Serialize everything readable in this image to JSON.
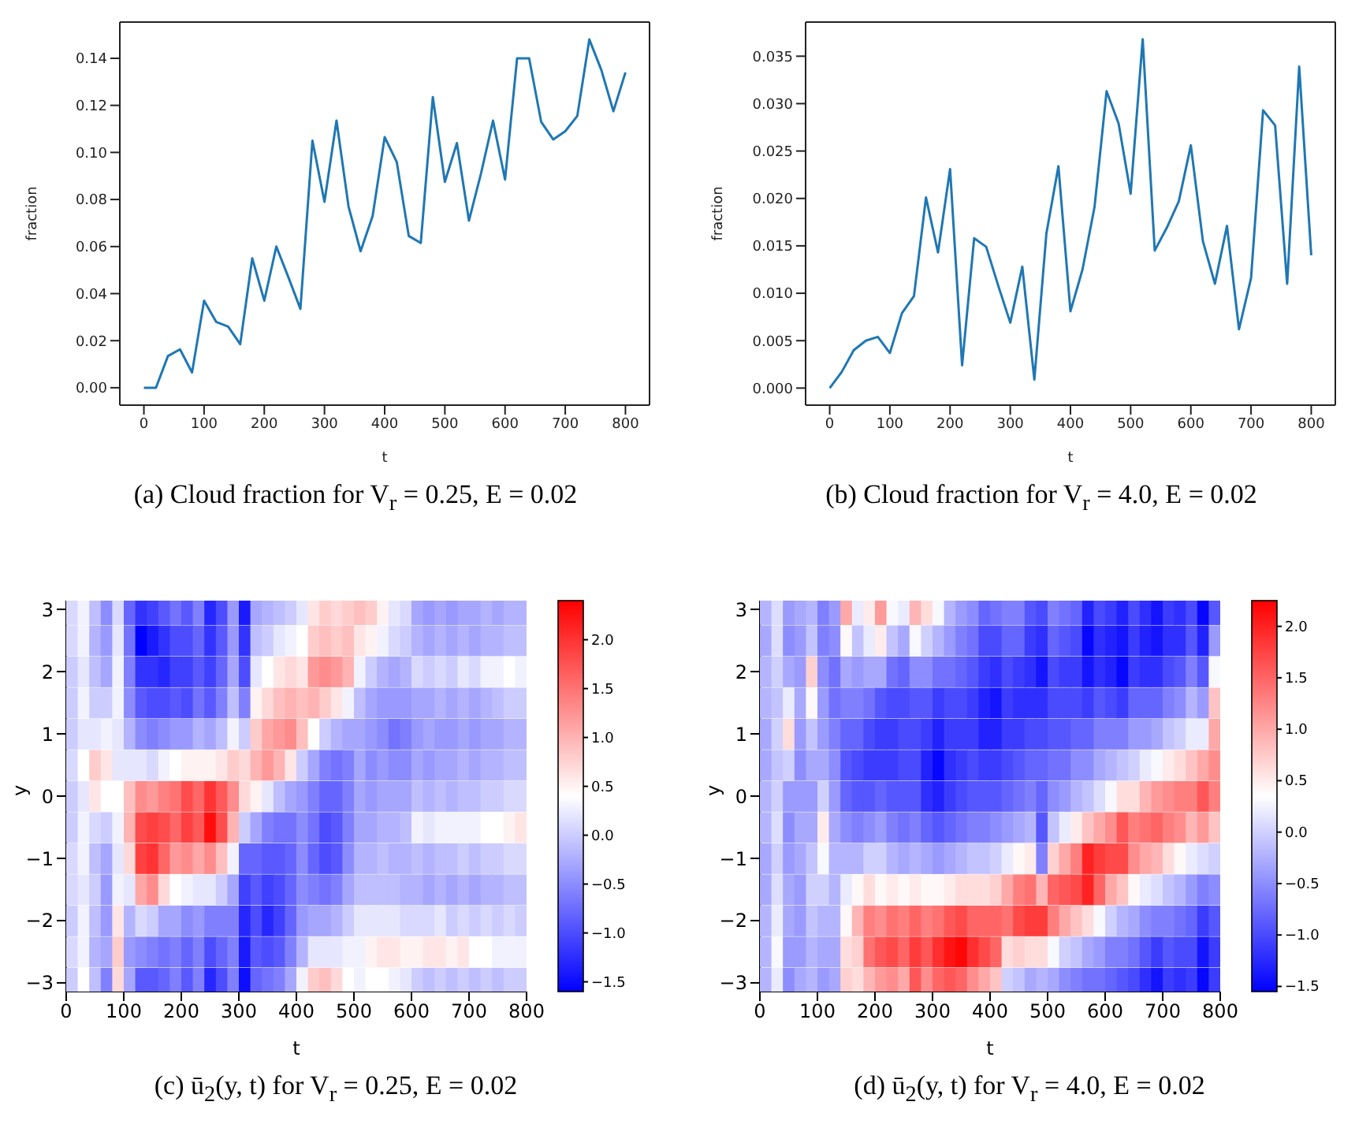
{
  "chart_data": [
    {
      "type": "line",
      "xlabel": "t",
      "ylabel": "fraction",
      "annotations": [
        "(a) Cloud fraction for V$_{r}$ = 0.25, E = 0.02"
      ],
      "x": [
        0,
        20,
        40,
        60,
        80,
        100,
        120,
        140,
        160,
        180,
        200,
        220,
        240,
        260,
        280,
        300,
        320,
        340,
        360,
        380,
        400,
        420,
        440,
        460,
        480,
        500,
        520,
        540,
        560,
        580,
        600,
        620,
        640,
        660,
        680,
        700,
        720,
        740,
        760,
        780,
        800
      ],
      "series": [
        {
          "color": "#1f77b4",
          "values": [
            0,
            0,
            0.0135,
            0.0163,
            0.0065,
            0.037,
            0.028,
            0.026,
            0.0185,
            0.055,
            0.037,
            0.06,
            0.047,
            0.0335,
            0.105,
            0.079,
            0.1135,
            0.077,
            0.058,
            0.073,
            0.1065,
            0.096,
            0.0645,
            0.0615,
            0.1235,
            0.0875,
            0.104,
            0.071,
            0.091,
            0.1135,
            0.0885,
            0.14,
            0.14,
            0.113,
            0.1055,
            0.109,
            0.1155,
            0.148,
            0.135,
            0.1175,
            0.134
          ]
        }
      ],
      "xlim": [
        -40,
        840
      ],
      "xticks": [
        0,
        100,
        200,
        300,
        400,
        500,
        600,
        700,
        800
      ],
      "ylim": [
        -0.0074,
        0.1554
      ],
      "yticks": [
        {
          "value": 0,
          "label": "0.00"
        },
        0.02,
        0.04,
        0.06,
        0.08,
        {
          "value": 0.1,
          "label": "0.10"
        },
        0.12,
        0.14
      ]
    },
    {
      "type": "line",
      "xlabel": "t",
      "ylabel": "fraction",
      "annotations": [
        "(b) Cloud fraction for V$_{r}$ = 4.0, E = 0.02"
      ],
      "x": [
        0,
        20,
        40,
        60,
        80,
        100,
        120,
        140,
        160,
        180,
        200,
        220,
        240,
        260,
        280,
        300,
        320,
        340,
        360,
        380,
        400,
        420,
        440,
        460,
        480,
        500,
        520,
        540,
        560,
        580,
        600,
        620,
        640,
        660,
        680,
        700,
        720,
        740,
        760,
        780,
        800
      ],
      "series": [
        {
          "color": "#1f77b4",
          "values": [
            0,
            0.0017,
            0.004,
            0.005,
            0.0054,
            0.0037,
            0.0079,
            0.0097,
            0.0201,
            0.0143,
            0.0231,
            0.0024,
            0.0158,
            0.0149,
            0.0108,
            0.0069,
            0.0128,
            0.0009,
            0.0163,
            0.0234,
            0.0081,
            0.0125,
            0.0191,
            0.0313,
            0.0279,
            0.0205,
            0.0368,
            0.0145,
            0.0169,
            0.0197,
            0.0256,
            0.0155,
            0.011,
            0.0171,
            0.0062,
            0.0116,
            0.0293,
            0.0277,
            0.011,
            0.0339,
            0.014
          ]
        }
      ],
      "xlim": [
        -40,
        840
      ],
      "xticks": [
        0,
        100,
        200,
        300,
        400,
        500,
        600,
        700,
        800
      ],
      "ylim": [
        -0.0018,
        0.0386
      ],
      "yticks": [
        {
          "value": 0,
          "label": "0.000"
        },
        0.005,
        {
          "value": 0.01,
          "label": "0.010"
        },
        0.015,
        {
          "value": 0.02,
          "label": "0.020"
        },
        0.025,
        {
          "value": 0.03,
          "label": "0.030"
        },
        0.035
      ]
    },
    {
      "type": "heatmap",
      "xlabel": "t",
      "ylabel": "y",
      "annotations": [
        "(c) ū$_{2}$(y, t) for V$_{r}$ = 0.25, E = 0.02"
      ],
      "x": [
        10,
        30,
        50,
        70,
        90,
        110,
        130,
        150,
        170,
        190,
        210,
        230,
        250,
        270,
        290,
        310,
        330,
        350,
        370,
        390,
        410,
        430,
        450,
        470,
        490,
        510,
        530,
        550,
        570,
        590,
        610,
        630,
        650,
        670,
        690,
        710,
        730,
        750,
        770,
        790
      ],
      "y": [
        3,
        2.5,
        2,
        1.5,
        1,
        0.5,
        0,
        -0.5,
        -1,
        -1.5,
        -2,
        -2.5,
        -3
      ],
      "xlim": [
        0,
        800
      ],
      "xticks": [
        0,
        100,
        200,
        300,
        400,
        500,
        600,
        700,
        800
      ],
      "ylim": [
        -3.14,
        3.14
      ],
      "yticks": [
        {
          "value": -3,
          "label": "−3"
        },
        {
          "value": -2,
          "label": "−2"
        },
        {
          "value": -1,
          "label": "−1"
        },
        0,
        1,
        2,
        3
      ],
      "colors": [
        "#0000ff",
        "#ffffff",
        "#ff0000"
      ],
      "clim": [
        -1.6,
        2.4
      ],
      "cticks": [
        {
          "value": -1.5,
          "label": "−1.5"
        },
        {
          "value": -1,
          "label": "−1.0"
        },
        {
          "value": -0.5,
          "label": "−0.5"
        },
        {
          "value": 0,
          "label": "0.0"
        },
        {
          "value": 0.5,
          "label": "0.5"
        },
        {
          "value": 1,
          "label": "1.0"
        },
        {
          "value": 1.5,
          "label": "1.5"
        },
        {
          "value": 2,
          "label": "2.0"
        }
      ],
      "cells": [
        [
          0.1,
          0.3,
          -0.1,
          -0.5,
          0.1,
          -0.8,
          -1.2,
          -1.1,
          -0.9,
          -0.7,
          -0.9,
          -0.6,
          -1.3,
          -1.0,
          -0.4,
          -1.4,
          -0.3,
          -0.2,
          -0.1,
          0.0,
          0.2,
          0.6,
          0.8,
          0.7,
          0.8,
          0.9,
          0.8,
          0.5,
          0.2,
          0.1,
          -0.3,
          -0.4,
          -0.3,
          -0.4,
          -0.3,
          -0.3,
          -0.2,
          -0.3,
          -0.2,
          -0.2
        ],
        [
          0.1,
          0.3,
          -0.2,
          -0.4,
          0.2,
          -0.7,
          -1.6,
          -1.4,
          -1.2,
          -1.0,
          -1.0,
          -0.8,
          -1.2,
          -0.9,
          -0.4,
          -1.2,
          -0.1,
          0.0,
          0.2,
          0.3,
          0.4,
          0.8,
          0.9,
          0.8,
          0.9,
          0.6,
          0.5,
          0.3,
          0.1,
          0.0,
          -0.2,
          -0.3,
          -0.2,
          -0.3,
          -0.2,
          -0.3,
          -0.2,
          -0.2,
          -0.1,
          -0.1
        ],
        [
          0.0,
          0.2,
          -0.1,
          -0.3,
          0.3,
          -0.6,
          -1.2,
          -1.2,
          -1.3,
          -1.1,
          -1.1,
          -0.9,
          -1.1,
          -0.8,
          -0.3,
          -1.0,
          0.2,
          0.4,
          0.6,
          0.7,
          0.6,
          1.2,
          1.3,
          1.2,
          1.0,
          0.3,
          0.0,
          -0.2,
          -0.3,
          -0.2,
          0.1,
          0.0,
          0.1,
          0.0,
          0.2,
          0.1,
          0.3,
          0.3,
          0.4,
          0.3
        ],
        [
          0.0,
          0.3,
          0.0,
          0.0,
          0.3,
          -0.5,
          -0.9,
          -1.0,
          -1.0,
          -0.9,
          -1.0,
          -0.7,
          -0.9,
          -0.6,
          -0.1,
          -0.6,
          0.5,
          0.7,
          0.9,
          1.0,
          0.9,
          1.0,
          0.8,
          0.6,
          0.3,
          -0.1,
          -0.3,
          -0.4,
          -0.4,
          -0.4,
          -0.3,
          -0.3,
          -0.2,
          -0.3,
          -0.2,
          -0.3,
          -0.2,
          -0.1,
          0.0,
          0.0
        ],
        [
          0.0,
          0.2,
          0.2,
          0.3,
          0.2,
          -0.2,
          -0.5,
          -0.6,
          -0.5,
          -0.4,
          -0.4,
          -0.2,
          -0.3,
          -0.1,
          0.3,
          0.0,
          0.8,
          1.1,
          1.2,
          1.3,
          0.9,
          0.4,
          0.0,
          -0.2,
          -0.3,
          -0.3,
          -0.4,
          -0.5,
          -0.7,
          -0.6,
          -0.4,
          -0.3,
          -0.4,
          -0.4,
          -0.3,
          -0.4,
          -0.3,
          -0.3,
          -0.2,
          -0.2
        ],
        [
          0.1,
          0.4,
          0.8,
          0.6,
          0.2,
          0.2,
          0.2,
          0.1,
          0.3,
          0.4,
          0.5,
          0.5,
          0.5,
          0.6,
          0.8,
          0.7,
          1.0,
          1.2,
          1.0,
          0.6,
          0.0,
          -0.3,
          -0.6,
          -0.7,
          -0.6,
          -0.3,
          -0.5,
          -0.4,
          -0.5,
          -0.5,
          -0.3,
          -0.4,
          -0.3,
          -0.3,
          -0.2,
          -0.3,
          -0.2,
          -0.2,
          -0.1,
          -0.1
        ],
        [
          0.0,
          0.2,
          0.6,
          0.4,
          0.4,
          0.9,
          1.3,
          1.2,
          1.4,
          1.5,
          1.8,
          1.6,
          2.0,
          1.7,
          1.3,
          0.7,
          0.5,
          0.2,
          -0.1,
          -0.3,
          -0.4,
          -0.6,
          -0.8,
          -0.8,
          -0.6,
          -0.3,
          -0.4,
          -0.3,
          -0.3,
          -0.3,
          -0.1,
          -0.2,
          -0.1,
          -0.2,
          -0.1,
          -0.1,
          0.0,
          0.0,
          0.1,
          0.1
        ],
        [
          0.0,
          0.3,
          0.1,
          0.0,
          0.3,
          1.0,
          1.8,
          1.9,
          1.8,
          1.6,
          1.9,
          1.7,
          2.3,
          1.8,
          1.0,
          0.0,
          -0.3,
          -0.6,
          -0.7,
          -0.7,
          -0.5,
          -0.7,
          -1.0,
          -0.9,
          -0.6,
          -0.3,
          -0.3,
          -0.2,
          -0.2,
          -0.1,
          0.3,
          0.2,
          0.3,
          0.3,
          0.3,
          0.3,
          0.4,
          0.4,
          0.5,
          0.6
        ],
        [
          0.1,
          0.3,
          -0.1,
          -0.3,
          0.2,
          0.7,
          1.9,
          2.0,
          1.6,
          1.2,
          1.3,
          1.1,
          1.3,
          0.9,
          0.3,
          -0.8,
          -0.8,
          -0.9,
          -0.9,
          -0.8,
          -0.5,
          -0.8,
          -1.0,
          -0.9,
          -0.5,
          -0.2,
          -0.2,
          -0.1,
          -0.2,
          -0.2,
          -0.1,
          -0.2,
          -0.1,
          -0.1,
          0.0,
          -0.1,
          0.0,
          0.0,
          0.1,
          0.1
        ],
        [
          0.1,
          0.2,
          0.0,
          -0.4,
          0.3,
          0.2,
          1.1,
          1.3,
          0.7,
          0.4,
          0.3,
          0.2,
          0.2,
          0.0,
          -0.3,
          -1.1,
          -0.9,
          -1.1,
          -1.0,
          -0.8,
          -0.5,
          -0.6,
          -0.7,
          -0.6,
          -0.3,
          -0.1,
          -0.1,
          -0.1,
          -0.1,
          -0.2,
          -0.2,
          -0.3,
          -0.2,
          -0.3,
          -0.2,
          -0.3,
          -0.2,
          -0.2,
          -0.1,
          -0.1
        ],
        [
          0.0,
          0.3,
          -0.1,
          -0.4,
          0.6,
          -0.2,
          0.1,
          0.0,
          -0.3,
          -0.3,
          -0.5,
          -0.4,
          -0.6,
          -0.6,
          -0.6,
          -1.3,
          -1.0,
          -1.3,
          -1.1,
          -0.8,
          -0.4,
          -0.3,
          -0.3,
          -0.2,
          0.0,
          0.2,
          0.2,
          0.2,
          0.2,
          0.1,
          0.1,
          0.1,
          0.2,
          0.0,
          0.1,
          0.0,
          0.1,
          0.0,
          0.1,
          0.0
        ],
        [
          0.1,
          0.3,
          -0.2,
          -0.3,
          0.8,
          -0.4,
          -0.5,
          -0.6,
          -0.7,
          -0.6,
          -0.8,
          -0.6,
          -1.0,
          -0.8,
          -0.6,
          -1.4,
          -0.9,
          -1.0,
          -0.9,
          -0.6,
          -0.2,
          0.2,
          0.2,
          0.2,
          0.3,
          0.3,
          0.5,
          0.6,
          0.6,
          0.5,
          0.5,
          0.6,
          0.6,
          0.5,
          0.6,
          0.4,
          0.4,
          0.3,
          0.3,
          0.3
        ],
        [
          0.0,
          0.4,
          -0.1,
          -0.6,
          0.7,
          -0.3,
          -0.9,
          -0.9,
          -0.8,
          -0.6,
          -0.9,
          -0.6,
          -1.3,
          -1.0,
          -0.6,
          -1.5,
          -0.8,
          -0.7,
          -0.6,
          -0.3,
          0.3,
          0.8,
          0.9,
          0.7,
          0.4,
          0.3,
          0.4,
          0.4,
          0.3,
          0.2,
          0.0,
          -0.1,
          0.0,
          -0.1,
          0.0,
          -0.1,
          0.0,
          -0.1,
          0.0,
          0.0
        ]
      ]
    },
    {
      "type": "heatmap",
      "xlabel": "t",
      "ylabel": "y",
      "annotations": [
        "(d) ū$_{2}$(y, t) for V$_{r}$ = 4.0, E = 0.02"
      ],
      "x": [
        10,
        30,
        50,
        70,
        90,
        110,
        130,
        150,
        170,
        190,
        210,
        230,
        250,
        270,
        290,
        310,
        330,
        350,
        370,
        390,
        410,
        430,
        450,
        470,
        490,
        510,
        530,
        550,
        570,
        590,
        610,
        630,
        650,
        670,
        690,
        710,
        730,
        750,
        770,
        790
      ],
      "y": [
        3,
        2.5,
        2,
        1.5,
        1,
        0.5,
        0,
        -0.5,
        -1,
        -1.5,
        -2,
        -2.5,
        -3
      ],
      "xlim": [
        0,
        800
      ],
      "xticks": [
        0,
        100,
        200,
        300,
        400,
        500,
        600,
        700,
        800
      ],
      "ylim": [
        -3.14,
        3.14
      ],
      "yticks": [
        {
          "value": -3,
          "label": "−3"
        },
        {
          "value": -2,
          "label": "−2"
        },
        {
          "value": -1,
          "label": "−1"
        },
        0,
        1,
        2,
        3
      ],
      "colors": [
        "#0000ff",
        "#ffffff",
        "#ff0000"
      ],
      "clim": [
        -1.55,
        2.25
      ],
      "cticks": [
        {
          "value": -1.5,
          "label": "−1.5"
        },
        {
          "value": -1,
          "label": "−1.0"
        },
        {
          "value": -0.5,
          "label": "−0.5"
        },
        {
          "value": 0,
          "label": "0.0"
        },
        {
          "value": 0.5,
          "label": "0.5"
        },
        {
          "value": 1,
          "label": "1.0"
        },
        {
          "value": 1.5,
          "label": "1.5"
        },
        {
          "value": 2,
          "label": "2.0"
        }
      ],
      "cells": [
        [
          -0.2,
          0.1,
          -0.4,
          -0.3,
          -0.2,
          -0.6,
          -0.4,
          1.0,
          0.2,
          0.5,
          1.1,
          0.3,
          0.2,
          0.9,
          0.6,
          0.3,
          -0.2,
          -0.4,
          -0.5,
          -0.8,
          -0.7,
          -0.6,
          -0.6,
          -0.9,
          -1.0,
          -0.6,
          -0.7,
          -0.8,
          -1.3,
          -1.0,
          -1.1,
          -1.3,
          -1.0,
          -1.2,
          -1.4,
          -1.1,
          -1.2,
          -1.0,
          -1.5,
          -0.9
        ],
        [
          -0.3,
          0.1,
          -0.5,
          -0.4,
          -0.1,
          -0.6,
          -0.5,
          0.4,
          -0.1,
          0.2,
          0.5,
          -0.1,
          -0.3,
          0.3,
          0.0,
          -0.2,
          -0.4,
          -0.6,
          -0.7,
          -1.0,
          -1.0,
          -0.8,
          -0.8,
          -1.1,
          -1.2,
          -0.8,
          -0.9,
          -1.0,
          -1.5,
          -1.2,
          -1.3,
          -1.4,
          -1.1,
          -1.3,
          -1.4,
          -1.2,
          -1.2,
          -0.9,
          -1.3,
          -0.4
        ],
        [
          -0.2,
          0.0,
          -0.3,
          -0.4,
          0.7,
          -0.5,
          -0.7,
          -0.3,
          -0.4,
          -0.3,
          -0.3,
          -0.7,
          -0.8,
          -0.5,
          -0.5,
          -0.7,
          -0.7,
          -0.8,
          -0.9,
          -1.1,
          -1.2,
          -1.0,
          -1.1,
          -1.2,
          -1.4,
          -1.0,
          -1.1,
          -1.1,
          -1.4,
          -1.2,
          -1.3,
          -1.5,
          -1.1,
          -1.2,
          -1.2,
          -1.0,
          -0.9,
          -0.6,
          -0.9,
          0.3
        ],
        [
          -0.2,
          -0.1,
          0.2,
          -0.3,
          0.4,
          -0.4,
          -0.7,
          -0.6,
          -0.6,
          -0.7,
          -0.9,
          -1.0,
          -1.0,
          -0.9,
          -0.9,
          -1.1,
          -1.0,
          -1.0,
          -1.1,
          -1.3,
          -1.4,
          -1.1,
          -1.2,
          -1.2,
          -1.2,
          -1.0,
          -1.0,
          -1.0,
          -1.1,
          -0.9,
          -1.0,
          -1.1,
          -0.8,
          -0.8,
          -0.8,
          -0.6,
          -0.5,
          -0.2,
          -0.4,
          0.8
        ],
        [
          -0.3,
          0.0,
          0.6,
          -0.4,
          -0.1,
          -0.4,
          -0.6,
          -0.8,
          -0.8,
          -1.0,
          -1.1,
          -1.1,
          -1.0,
          -1.0,
          -1.1,
          -1.3,
          -1.1,
          -1.1,
          -1.1,
          -1.3,
          -1.3,
          -1.1,
          -1.1,
          -1.0,
          -1.0,
          -0.9,
          -0.9,
          -0.8,
          -0.8,
          -0.6,
          -0.6,
          -0.6,
          -0.4,
          -0.4,
          -0.3,
          -0.1,
          0.0,
          0.2,
          0.2,
          1.0
        ],
        [
          -0.3,
          -0.1,
          0.0,
          -0.5,
          -0.3,
          -0.3,
          -0.5,
          -0.9,
          -1.0,
          -1.1,
          -1.1,
          -1.1,
          -1.0,
          -1.0,
          -1.3,
          -1.5,
          -1.2,
          -1.1,
          -1.0,
          -1.1,
          -1.1,
          -1.0,
          -0.9,
          -0.8,
          -0.8,
          -0.7,
          -0.7,
          -0.5,
          -0.5,
          -0.3,
          -0.2,
          -0.1,
          0.0,
          0.2,
          0.3,
          0.5,
          0.6,
          0.8,
          1.0,
          1.2
        ],
        [
          -0.2,
          0.0,
          -0.4,
          -0.4,
          -0.4,
          0.0,
          -0.4,
          -0.8,
          -0.9,
          -0.9,
          -0.8,
          -0.9,
          -0.9,
          -0.9,
          -1.2,
          -1.3,
          -1.1,
          -1.0,
          -0.9,
          -0.9,
          -0.9,
          -0.8,
          -0.7,
          -0.6,
          -0.8,
          -0.5,
          -0.4,
          -0.2,
          -0.1,
          0.1,
          0.3,
          0.6,
          0.6,
          0.9,
          1.1,
          1.2,
          1.3,
          1.3,
          1.6,
          1.3
        ],
        [
          -0.2,
          0.1,
          -0.5,
          -0.3,
          -0.3,
          0.5,
          -0.3,
          -0.5,
          -0.6,
          -0.5,
          -0.4,
          -0.6,
          -0.7,
          -0.6,
          -0.8,
          -0.9,
          -0.8,
          -0.7,
          -0.6,
          -0.6,
          -0.5,
          -0.4,
          -0.3,
          -0.2,
          -0.9,
          -0.1,
          0.2,
          0.5,
          0.8,
          1.0,
          1.2,
          1.6,
          1.3,
          1.4,
          1.5,
          1.3,
          1.2,
          0.9,
          1.1,
          0.8
        ],
        [
          -0.3,
          0.0,
          -0.4,
          -0.3,
          -0.1,
          0.3,
          -0.2,
          -0.2,
          -0.2,
          0.0,
          0.0,
          -0.2,
          -0.3,
          -0.2,
          -0.3,
          -0.4,
          -0.3,
          -0.2,
          -0.1,
          -0.1,
          0.0,
          0.2,
          0.4,
          0.5,
          -0.6,
          0.7,
          1.0,
          1.3,
          2.0,
          1.8,
          1.7,
          1.7,
          1.2,
          1.0,
          0.9,
          0.6,
          0.4,
          0.2,
          0.1,
          0.0
        ],
        [
          -0.3,
          0.1,
          -0.3,
          -0.4,
          0.0,
          0.0,
          -0.2,
          0.2,
          0.4,
          0.6,
          0.4,
          0.5,
          0.4,
          0.5,
          0.4,
          0.4,
          0.5,
          0.6,
          0.6,
          0.6,
          0.7,
          1.0,
          1.3,
          1.4,
          0.9,
          1.5,
          1.6,
          1.7,
          2.0,
          1.5,
          1.0,
          0.8,
          0.4,
          0.2,
          0.1,
          -0.1,
          -0.2,
          -0.4,
          -0.6,
          -0.5
        ],
        [
          -0.2,
          0.2,
          -0.3,
          -0.4,
          -0.1,
          -0.2,
          -0.2,
          0.4,
          0.9,
          1.3,
          1.2,
          1.4,
          1.3,
          1.5,
          1.3,
          1.4,
          1.6,
          1.7,
          1.5,
          1.5,
          1.5,
          1.4,
          1.7,
          1.8,
          1.8,
          1.3,
          1.0,
          0.8,
          0.6,
          0.3,
          0.0,
          -0.2,
          -0.3,
          -0.5,
          -0.6,
          -0.6,
          -0.7,
          -0.8,
          -1.1,
          -0.9
        ],
        [
          -0.2,
          0.3,
          -0.4,
          -0.4,
          -0.2,
          -0.3,
          -0.3,
          0.6,
          0.7,
          1.4,
          1.6,
          1.7,
          1.5,
          1.8,
          1.6,
          1.9,
          2.1,
          2.2,
          1.9,
          1.7,
          1.5,
          0.6,
          0.7,
          0.6,
          0.6,
          0.3,
          0.0,
          -0.1,
          -0.3,
          -0.4,
          -0.6,
          -0.6,
          -0.7,
          -0.9,
          -1.1,
          -0.9,
          -1.0,
          -1.0,
          -1.4,
          -1.1
        ],
        [
          -0.2,
          0.2,
          -0.5,
          -0.3,
          -0.2,
          -0.4,
          -0.3,
          0.7,
          0.6,
          0.9,
          1.1,
          1.2,
          1.0,
          1.6,
          1.2,
          1.5,
          1.6,
          1.5,
          1.2,
          1.0,
          0.8,
          0.0,
          -0.1,
          -0.3,
          -0.2,
          -0.3,
          -0.5,
          -0.6,
          -0.7,
          -0.7,
          -0.8,
          -0.9,
          -1.0,
          -1.2,
          -1.4,
          -1.1,
          -1.2,
          -1.1,
          -1.5,
          -1.1
        ]
      ]
    }
  ]
}
